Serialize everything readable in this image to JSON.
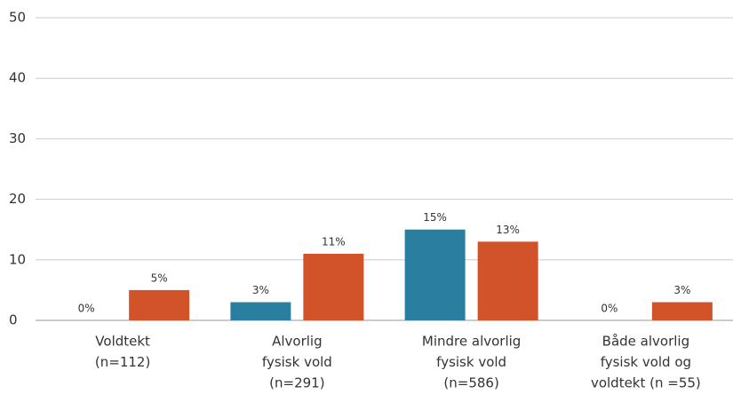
{
  "chart_data": {
    "type": "bar",
    "categories": [
      [
        "Voldtekt",
        "(n=112)"
      ],
      [
        "Alvorlig",
        "fysisk vold",
        "(n=291)"
      ],
      [
        "Mindre alvorlig",
        "fysisk vold",
        "(n=586)"
      ],
      [
        "Både alvorlig",
        "fysisk vold og",
        "voldtekt (n =55)"
      ]
    ],
    "series": [
      {
        "color": "#2a7fa0",
        "values": [
          0,
          3,
          15,
          0
        ],
        "value_labels": [
          "0%",
          "3%",
          "15%",
          "0%"
        ]
      },
      {
        "color": "#d2522a",
        "values": [
          5,
          11,
          13,
          3
        ],
        "value_labels": [
          "5%",
          "11%",
          "13%",
          "3%"
        ]
      }
    ],
    "ylim": [
      0,
      50
    ],
    "yticks": [
      0,
      10,
      20,
      30,
      40,
      50
    ],
    "grid": true
  }
}
